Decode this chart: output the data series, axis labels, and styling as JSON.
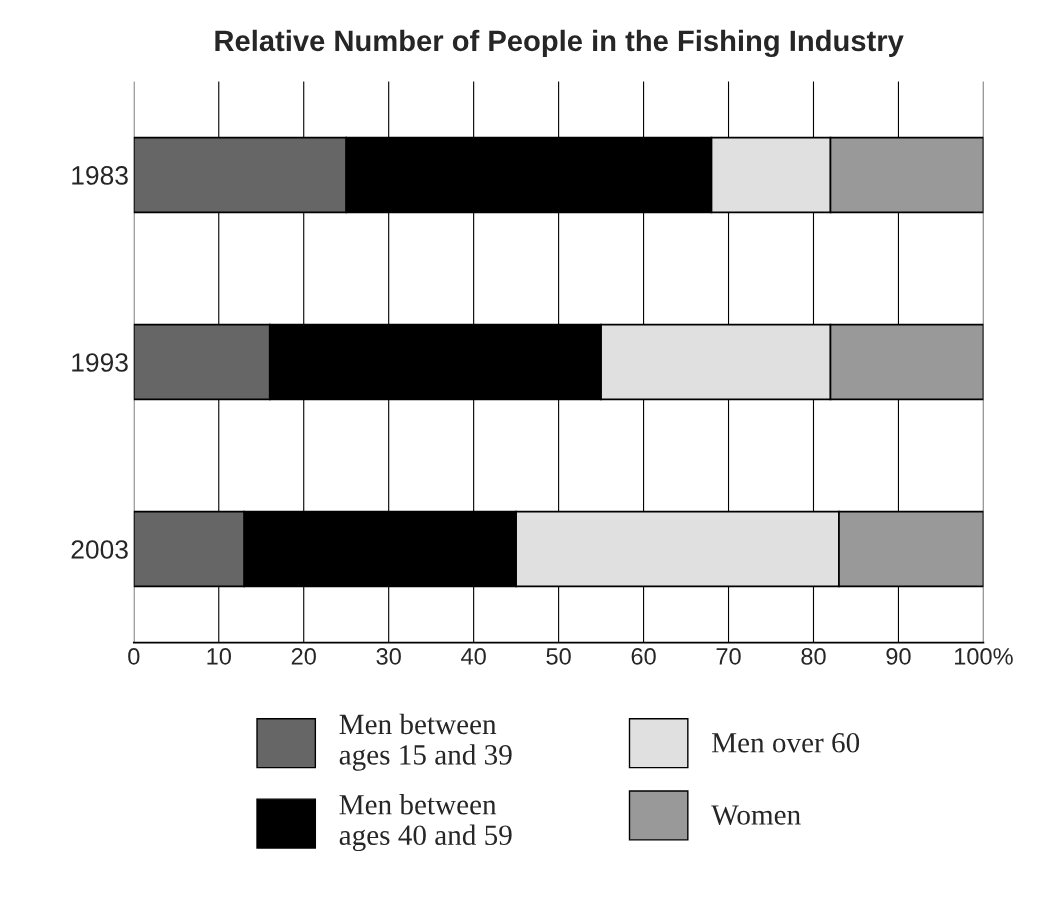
{
  "chart_data": {
    "type": "bar",
    "orientation": "horizontal",
    "stacked": true,
    "title": "Relative Number of People in the Fishing Industry",
    "categories": [
      "1983",
      "1993",
      "2003"
    ],
    "series": [
      {
        "name": "Men between\nages 15 and 39",
        "color": "#666666",
        "values": [
          25,
          16,
          13
        ]
      },
      {
        "name": "Men between\nages 40 and 59",
        "color": "#000000",
        "values": [
          43,
          39,
          32
        ]
      },
      {
        "name": "Men over 60",
        "color": "#e0e0e0",
        "values": [
          14,
          27,
          38
        ]
      },
      {
        "name": "Women",
        "color": "#999999",
        "values": [
          18,
          18,
          17
        ]
      }
    ],
    "xlim": [
      0,
      100
    ],
    "xticks": [
      0,
      10,
      20,
      30,
      40,
      50,
      60,
      70,
      80,
      90,
      {
        "value": 100,
        "label": "100%"
      }
    ],
    "grid": "x",
    "legend": "bottom"
  }
}
